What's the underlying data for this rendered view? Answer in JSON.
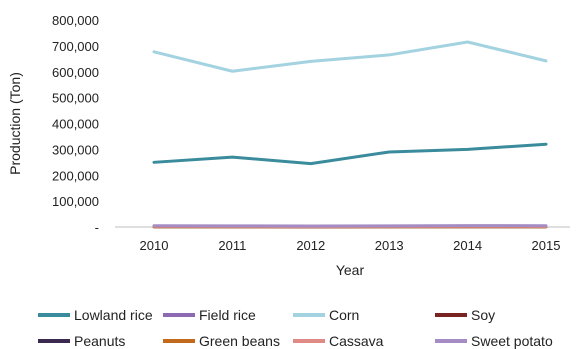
{
  "chart_data": {
    "type": "line",
    "xlabel": "Year",
    "ylabel": "Production (Ton)",
    "x": [
      "2010",
      "2011",
      "2012",
      "2013",
      "2014",
      "2015"
    ],
    "ylim": [
      0,
      800000
    ],
    "yticks": [
      0,
      100000,
      200000,
      300000,
      400000,
      500000,
      600000,
      700000,
      800000
    ],
    "ytick_labels": [
      "-",
      "100,000",
      "200,000",
      "300,000",
      "400,000",
      "500,000",
      "600,000",
      "700,000",
      "800,000"
    ],
    "grid": false,
    "legend_position": "bottom",
    "series": [
      {
        "name": "Lowland rice",
        "color": "#3a8b9c",
        "values": [
          250000,
          270000,
          245000,
          290000,
          300000,
          320000
        ]
      },
      {
        "name": "Field rice",
        "color": "#8e6ab3",
        "values": [
          4000,
          3500,
          3000,
          3500,
          4000,
          3500
        ]
      },
      {
        "name": "Corn",
        "color": "#a3d2e0",
        "values": [
          677000,
          602000,
          640000,
          665000,
          715000,
          642000
        ]
      },
      {
        "name": "Soy",
        "color": "#7a2323",
        "values": [
          1000,
          800,
          700,
          800,
          1000,
          900
        ]
      },
      {
        "name": "Peanuts",
        "color": "#3b2a4f",
        "values": [
          1500,
          1400,
          1300,
          1400,
          1500,
          1400
        ]
      },
      {
        "name": "Green beans",
        "color": "#c26a1c",
        "values": [
          1200,
          1100,
          1000,
          1100,
          1200,
          1100
        ]
      },
      {
        "name": "Cassava",
        "color": "#e08a86",
        "values": [
          3000,
          2500,
          2000,
          2500,
          3000,
          2500
        ]
      },
      {
        "name": "Sweet potato",
        "color": "#a58cc4",
        "values": [
          5000,
          4500,
          4000,
          4500,
          5500,
          5000
        ]
      }
    ]
  }
}
